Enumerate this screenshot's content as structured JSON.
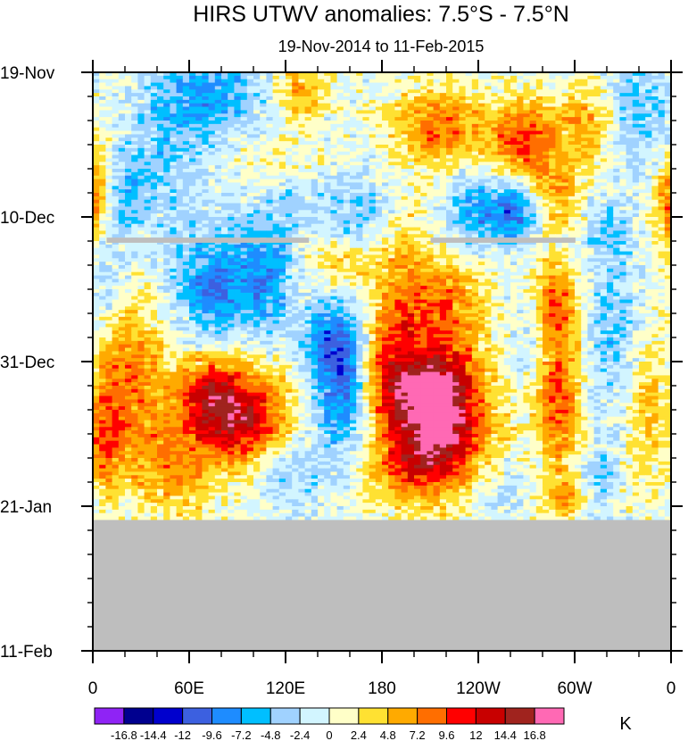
{
  "chart_data": {
    "type": "heatmap",
    "title": "HIRS UTWV anomalies: 7.5°S - 7.5°N",
    "subtitle": "19-Nov-2014 to 11-Feb-2015",
    "x_axis": {
      "ticks": [
        {
          "lon": 0,
          "label": "0"
        },
        {
          "lon": 60,
          "label": "60E"
        },
        {
          "lon": 120,
          "label": "120E"
        },
        {
          "lon": 180,
          "label": "180"
        },
        {
          "lon": 240,
          "label": "120W"
        },
        {
          "lon": 300,
          "label": "60W"
        },
        {
          "lon": 360,
          "label": "0"
        }
      ],
      "range": [
        0,
        360
      ]
    },
    "y_axis": {
      "start_date": "19-Nov",
      "ticks": [
        {
          "day": 0,
          "label": "19-Nov"
        },
        {
          "day": 21,
          "label": "10-Dec"
        },
        {
          "day": 42,
          "label": "31-Dec"
        },
        {
          "day": 63,
          "label": "21-Jan"
        },
        {
          "day": 84,
          "label": "11-Feb"
        }
      ],
      "range": [
        0,
        84
      ],
      "reversed": true
    },
    "data_end_day": 65,
    "missing_bars": [
      {
        "day": 24,
        "lon_start": 8.6,
        "lon_end": 134.6
      },
      {
        "day": 24,
        "lon_start": 210.3,
        "lon_end": 300.5
      }
    ],
    "missing_color": "#bebebe",
    "features": [
      {
        "lon": 95,
        "day": 50,
        "sx": 18,
        "sy": 5,
        "amp": 13
      },
      {
        "lon": 70,
        "day": 47,
        "sx": 14,
        "sy": 4,
        "amp": 10
      },
      {
        "lon": 24,
        "day": 44,
        "sx": 14,
        "sy": 8,
        "amp": 8
      },
      {
        "lon": 7,
        "day": 53,
        "sx": 8,
        "sy": 6,
        "amp": 8
      },
      {
        "lon": 50,
        "day": 57,
        "sx": 18,
        "sy": 5,
        "amp": 7
      },
      {
        "lon": 215,
        "day": 52,
        "sx": 22,
        "sy": 5,
        "amp": 14
      },
      {
        "lon": 205,
        "day": 46,
        "sx": 16,
        "sy": 3,
        "amp": 11
      },
      {
        "lon": 220,
        "day": 38,
        "sx": 18,
        "sy": 9,
        "amp": 9
      },
      {
        "lon": 193,
        "day": 34,
        "sx": 10,
        "sy": 8,
        "amp": 6
      },
      {
        "lon": 180,
        "day": 42,
        "sx": 9,
        "sy": 6,
        "amp": 6
      },
      {
        "lon": 200,
        "day": 58,
        "sx": 26,
        "sy": 4,
        "amp": 6
      },
      {
        "lon": 290,
        "day": 46,
        "sx": 10,
        "sy": 9,
        "amp": 10
      },
      {
        "lon": 288,
        "day": 33,
        "sx": 9,
        "sy": 4,
        "amp": 6
      },
      {
        "lon": 270,
        "day": 10,
        "sx": 15,
        "sy": 4,
        "amp": 10
      },
      {
        "lon": 215,
        "day": 8,
        "sx": 20,
        "sy": 4,
        "amp": 8
      },
      {
        "lon": 310,
        "day": 7,
        "sx": 12,
        "sy": 4,
        "amp": 6
      },
      {
        "lon": 290,
        "day": 18,
        "sx": 12,
        "sy": 4,
        "amp": 5
      },
      {
        "lon": 130,
        "day": 3,
        "sx": 10,
        "sy": 4,
        "amp": 6
      },
      {
        "lon": 122,
        "day": 13,
        "sx": 14,
        "sy": 3,
        "amp": 5
      },
      {
        "lon": 155,
        "day": 28,
        "sx": 16,
        "sy": 3,
        "amp": 6
      },
      {
        "lon": 0,
        "day": 19,
        "sx": 7,
        "sy": 5,
        "amp": 8
      },
      {
        "lon": 360,
        "day": 19,
        "sx": 7,
        "sy": 5,
        "amp": 8
      },
      {
        "lon": 345,
        "day": 48,
        "sx": 10,
        "sy": 8,
        "amp": 5
      },
      {
        "lon": 300,
        "day": 62,
        "sx": 12,
        "sy": 2,
        "amp": 5
      },
      {
        "lon": 75,
        "day": 3,
        "sx": 20,
        "sy": 4,
        "amp": -7
      },
      {
        "lon": 48,
        "day": 9,
        "sx": 18,
        "sy": 8,
        "amp": -4
      },
      {
        "lon": 22,
        "day": 18,
        "sx": 10,
        "sy": 4,
        "amp": -5
      },
      {
        "lon": 85,
        "day": 27,
        "sx": 30,
        "sy": 6,
        "amp": -5
      },
      {
        "lon": 75,
        "day": 33,
        "sx": 14,
        "sy": 4,
        "amp": -6
      },
      {
        "lon": 108,
        "day": 31,
        "sx": 10,
        "sy": 6,
        "amp": -5
      },
      {
        "lon": 155,
        "day": 45,
        "sx": 12,
        "sy": 9,
        "amp": -9
      },
      {
        "lon": 145,
        "day": 39,
        "sx": 12,
        "sy": 4,
        "amp": -5
      },
      {
        "lon": 125,
        "day": 14,
        "sx": 12,
        "sy": 6,
        "amp": -4
      },
      {
        "lon": 163,
        "day": 20,
        "sx": 12,
        "sy": 4,
        "amp": -5
      },
      {
        "lon": 240,
        "day": 21,
        "sx": 16,
        "sy": 4,
        "amp": -8
      },
      {
        "lon": 265,
        "day": 20,
        "sx": 10,
        "sy": 3,
        "amp": -8
      },
      {
        "lon": 340,
        "day": 5,
        "sx": 16,
        "sy": 6,
        "amp": -5
      },
      {
        "lon": 325,
        "day": 38,
        "sx": 14,
        "sy": 8,
        "amp": -5
      },
      {
        "lon": 320,
        "day": 23,
        "sx": 12,
        "sy": 3,
        "amp": -4
      },
      {
        "lon": 315,
        "day": 60,
        "sx": 8,
        "sy": 4,
        "amp": -5
      },
      {
        "lon": 250,
        "day": 60,
        "sx": 14,
        "sy": 4,
        "amp": -3
      },
      {
        "lon": 120,
        "day": 58,
        "sx": 14,
        "sy": 4,
        "amp": -4
      },
      {
        "lon": 8,
        "day": 30,
        "sx": 8,
        "sy": 6,
        "amp": -3
      },
      {
        "lon": 275,
        "day": 40,
        "sx": 12,
        "sy": 4,
        "amp": -3
      }
    ],
    "colorbar": {
      "levels": [
        -16.8,
        -14.4,
        -12,
        -9.6,
        -7.2,
        -4.8,
        -2.4,
        0,
        2.4,
        4.8,
        7.2,
        9.6,
        12,
        14.4,
        16.8
      ],
      "labels": [
        "-16.8",
        "-14.4",
        "-12",
        "-9.6",
        "-7.2",
        "-4.8",
        "-2.4",
        "0",
        "2.4",
        "4.8",
        "7.2",
        "9.6",
        "12",
        "14.4",
        "16.8"
      ],
      "colors": [
        "#8f23f5",
        "#00008f",
        "#0000cd",
        "#3c60e0",
        "#1e8cff",
        "#00bfff",
        "#a0d2ff",
        "#d2f5ff",
        "#ffffc8",
        "#ffe132",
        "#ffaa00",
        "#ff6e00",
        "#ff0000",
        "#c80000",
        "#a0231e",
        "#ff69b4"
      ],
      "units": "K"
    }
  }
}
